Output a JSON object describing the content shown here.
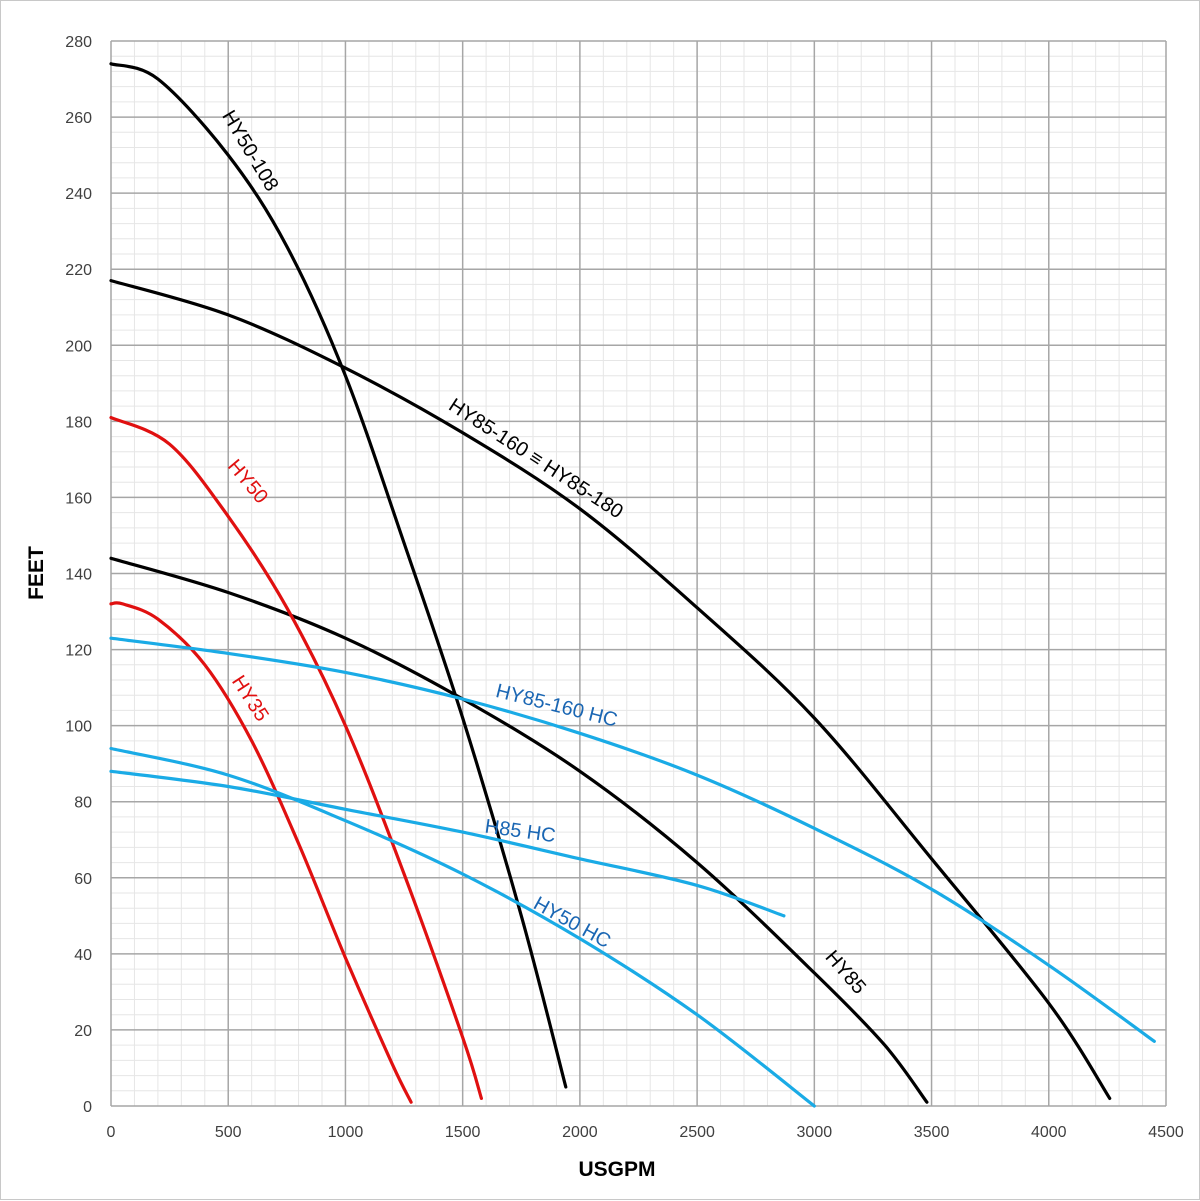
{
  "chart_data": {
    "type": "line",
    "xlabel": "USGPM",
    "ylabel": "FEET",
    "xlim": [
      0,
      4500
    ],
    "ylim": [
      0,
      280
    ],
    "x_ticks": [
      0,
      500,
      1000,
      1500,
      2000,
      2500,
      3000,
      3500,
      4000,
      4500
    ],
    "y_ticks": [
      0,
      20,
      40,
      60,
      80,
      100,
      120,
      140,
      160,
      180,
      200,
      220,
      240,
      260,
      280
    ],
    "grid": true,
    "legend": "none",
    "colors": {
      "black": "#000000",
      "red": "#e01010",
      "blue": "#1aabe6",
      "label_blue": "#1a66b3"
    },
    "series": [
      {
        "name": "HY50-108",
        "color": "#000000",
        "x": [
          0,
          200,
          500,
          750,
          1000,
          1250,
          1500,
          1750,
          1940
        ],
        "y": [
          274,
          270,
          250,
          226,
          192,
          148,
          102,
          50,
          5
        ]
      },
      {
        "name": "HY85-160 ≡ HY85-180",
        "color": "#000000",
        "x": [
          0,
          500,
          1000,
          1500,
          2000,
          2500,
          3000,
          3500,
          4000,
          4260
        ],
        "y": [
          217,
          208,
          194,
          177,
          157,
          131,
          102,
          65,
          27,
          2
        ]
      },
      {
        "name": "HY85",
        "color": "#000000",
        "x": [
          0,
          500,
          1000,
          1500,
          2000,
          2500,
          3000,
          3300,
          3480
        ],
        "y": [
          144,
          135,
          123,
          107,
          88,
          64,
          35,
          16,
          1
        ]
      },
      {
        "name": "HY50",
        "color": "#e01010",
        "x": [
          0,
          250,
          500,
          750,
          1000,
          1250,
          1500,
          1580
        ],
        "y": [
          181,
          174,
          155,
          131,
          100,
          61,
          18,
          2
        ]
      },
      {
        "name": "HY35",
        "color": "#e01010",
        "x": [
          0,
          50,
          200,
          400,
          600,
          800,
          1000,
          1200,
          1280
        ],
        "y": [
          132,
          132,
          128,
          116,
          96,
          69,
          39,
          11,
          1
        ]
      },
      {
        "name": "HY85-160 HC",
        "color": "#1aabe6",
        "x": [
          0,
          500,
          1000,
          1500,
          2000,
          2500,
          3000,
          3500,
          4000,
          4450
        ],
        "y": [
          123,
          119,
          114,
          107,
          98,
          87,
          73,
          57,
          37,
          17
        ]
      },
      {
        "name": "H85 HC",
        "color": "#1aabe6",
        "x": [
          0,
          500,
          1000,
          1500,
          2000,
          2500,
          2870
        ],
        "y": [
          88,
          84,
          78,
          72,
          65,
          58,
          50
        ]
      },
      {
        "name": "HY50 HC",
        "color": "#1aabe6",
        "x": [
          0,
          500,
          1000,
          1500,
          2000,
          2500,
          3000
        ],
        "y": [
          94,
          87,
          75,
          61,
          44,
          24,
          0
        ]
      }
    ],
    "annotations": [
      {
        "text": "HY50-108",
        "color": "#000000",
        "x": 590,
        "y": 251,
        "angle": 59
      },
      {
        "text": "HY85-160 ≡ HY85-180",
        "color": "#000000",
        "x": 1810,
        "y": 170,
        "angle": 33
      },
      {
        "text": "HY85",
        "color": "#000000",
        "x": 3130,
        "y": 35,
        "angle": 49
      },
      {
        "text": "HY50",
        "color": "#e01010",
        "x": 580,
        "y": 164,
        "angle": 50
      },
      {
        "text": "HY35",
        "color": "#e01010",
        "x": 590,
        "y": 107,
        "angle": 57
      },
      {
        "text": "HY85-160 HC",
        "color": "#1a66b3",
        "x": 1900,
        "y": 105,
        "angle": 14
      },
      {
        "text": "H85 HC",
        "color": "#1a66b3",
        "x": 1745,
        "y": 72,
        "angle": 8
      },
      {
        "text": "HY50 HC",
        "color": "#1a66b3",
        "x": 1965,
        "y": 48,
        "angle": 29
      }
    ]
  }
}
